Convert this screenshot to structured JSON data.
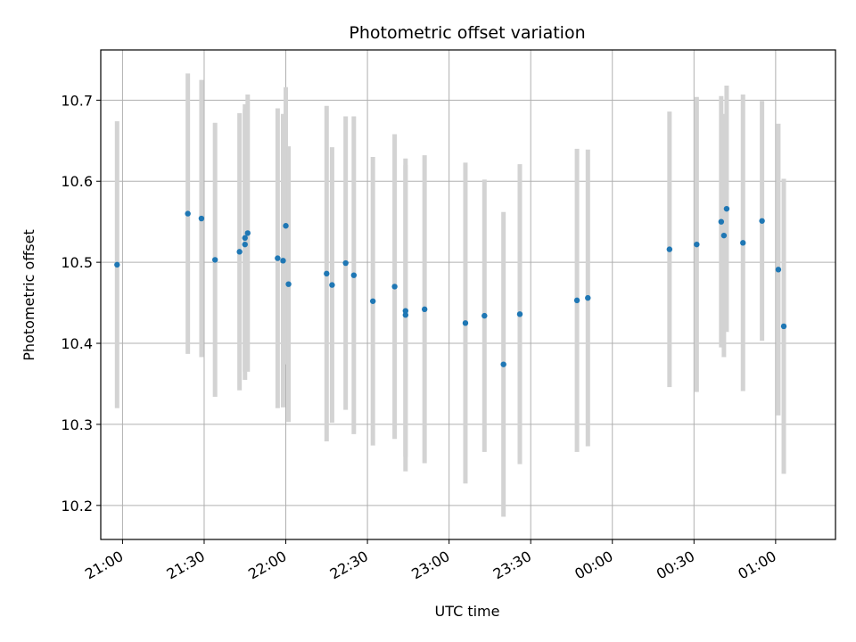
{
  "chart_data": {
    "type": "scatter",
    "title": "Photometric offset variation",
    "xlabel": "UTC time",
    "ylabel": "Photometric offset",
    "x_axis_type": "time",
    "xlim": [
      "20:52",
      "01:22"
    ],
    "ylim": [
      10.158,
      10.762
    ],
    "x_ticks": [
      "21:00",
      "21:30",
      "22:00",
      "22:30",
      "23:00",
      "23:30",
      "00:00",
      "00:30",
      "01:00"
    ],
    "y_ticks": [
      10.2,
      10.3,
      10.4,
      10.5,
      10.6,
      10.7
    ],
    "grid": true,
    "legend": "none",
    "colors": {
      "points": "#1f77b4",
      "errorbars": "#d3d3d3",
      "grid": "#b0b0b0"
    },
    "points": [
      {
        "x": "20:58",
        "y": 10.497,
        "err": 0.177
      },
      {
        "x": "21:24",
        "y": 10.56,
        "err": 0.173
      },
      {
        "x": "21:29",
        "y": 10.554,
        "err": 0.171
      },
      {
        "x": "21:34",
        "y": 10.503,
        "err": 0.169
      },
      {
        "x": "21:43",
        "y": 10.513,
        "err": 0.171
      },
      {
        "x": "21:45",
        "y": 10.522,
        "err": 0.167
      },
      {
        "x": "21:45",
        "y": 10.53,
        "err": 0.165
      },
      {
        "x": "21:46",
        "y": 10.536,
        "err": 0.171
      },
      {
        "x": "21:57",
        "y": 10.505,
        "err": 0.185
      },
      {
        "x": "21:59",
        "y": 10.502,
        "err": 0.181
      },
      {
        "x": "22:00",
        "y": 10.545,
        "err": 0.171
      },
      {
        "x": "22:01",
        "y": 10.473,
        "err": 0.17
      },
      {
        "x": "22:15",
        "y": 10.486,
        "err": 0.207
      },
      {
        "x": "22:17",
        "y": 10.472,
        "err": 0.17
      },
      {
        "x": "22:22",
        "y": 10.499,
        "err": 0.181
      },
      {
        "x": "22:25",
        "y": 10.484,
        "err": 0.196
      },
      {
        "x": "22:32",
        "y": 10.452,
        "err": 0.178
      },
      {
        "x": "22:40",
        "y": 10.47,
        "err": 0.188
      },
      {
        "x": "22:44",
        "y": 10.435,
        "err": 0.193
      },
      {
        "x": "22:44",
        "y": 10.44,
        "err": 0.18
      },
      {
        "x": "22:51",
        "y": 10.442,
        "err": 0.19
      },
      {
        "x": "23:06",
        "y": 10.425,
        "err": 0.198
      },
      {
        "x": "23:13",
        "y": 10.434,
        "err": 0.168
      },
      {
        "x": "23:20",
        "y": 10.374,
        "err": 0.188
      },
      {
        "x": "23:26",
        "y": 10.436,
        "err": 0.185
      },
      {
        "x": "23:47",
        "y": 10.453,
        "err": 0.187
      },
      {
        "x": "23:51",
        "y": 10.456,
        "err": 0.183
      },
      {
        "x": "00:21",
        "y": 10.516,
        "err": 0.17
      },
      {
        "x": "00:31",
        "y": 10.522,
        "err": 0.182
      },
      {
        "x": "00:40",
        "y": 10.55,
        "err": 0.155
      },
      {
        "x": "00:41",
        "y": 10.533,
        "err": 0.15
      },
      {
        "x": "00:42",
        "y": 10.566,
        "err": 0.152
      },
      {
        "x": "00:48",
        "y": 10.524,
        "err": 0.183
      },
      {
        "x": "00:55",
        "y": 10.551,
        "err": 0.148
      },
      {
        "x": "01:01",
        "y": 10.491,
        "err": 0.18
      },
      {
        "x": "01:03",
        "y": 10.421,
        "err": 0.182
      }
    ]
  }
}
